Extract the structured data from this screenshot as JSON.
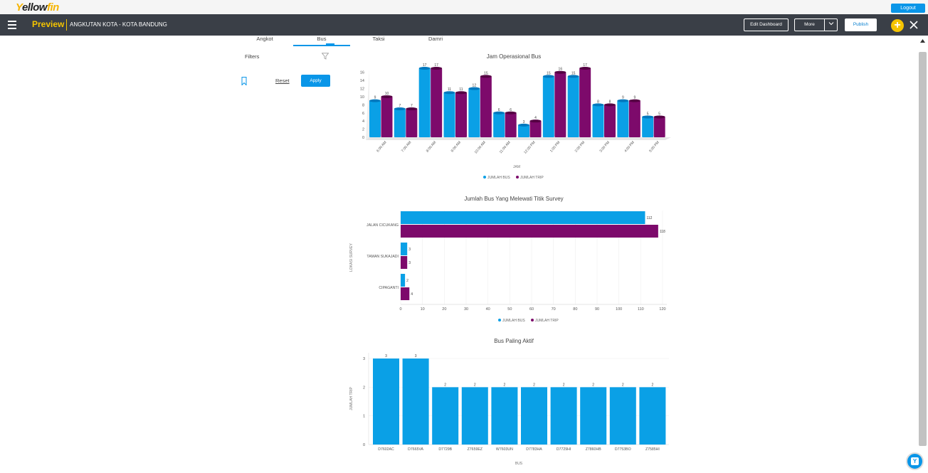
{
  "header": {
    "logo_text": "Yellowfin",
    "logout_label": "Logout",
    "preview_label": "Preview",
    "breadcrumb": "ANGKUTAN KOTA - KOTA BANDUNG",
    "edit_dashboard_label": "Edit Dashboard",
    "more_label": "More",
    "publish_label": "Publish"
  },
  "tabs": [
    "Angkot",
    "Bus",
    "Taksi",
    "Damri"
  ],
  "active_tab": "Bus",
  "filters": {
    "title": "Filters",
    "reset_label": "Reset",
    "apply_label": "Apply"
  },
  "colors": {
    "bus": "#0aa0e6",
    "trip": "#7d0a6b",
    "accent": "#0a96e8",
    "brand_yellow": "#f5c400",
    "toolbar": "#3a3f47"
  },
  "chart_data": [
    {
      "type": "bar",
      "title": "Jam Operasional Bus",
      "xlabel": "JAM",
      "ylabel": "",
      "categories": [
        "6:00 AM",
        "7:00 AM",
        "8:00 AM",
        "9:00 AM",
        "10:00 AM",
        "11:00 AM",
        "12:00 PM",
        "1:00 PM",
        "2:00 PM",
        "3:00 PM",
        "4:00 PM",
        "5:00 PM"
      ],
      "series": [
        {
          "name": "JUMLAH BUS",
          "values": [
            9,
            7,
            17,
            11,
            12,
            6,
            3,
            15,
            15,
            8,
            9,
            5
          ]
        },
        {
          "name": "JUMLAH TRIP",
          "values": [
            10,
            7,
            17,
            11,
            15,
            6,
            4,
            16,
            17,
            8,
            9,
            5
          ]
        }
      ],
      "yticks": [
        0,
        2,
        4,
        6,
        8,
        10,
        12,
        14,
        16
      ],
      "ylim": [
        0,
        17
      ],
      "legend": "bottom"
    },
    {
      "type": "bar",
      "orientation": "horizontal",
      "title": "Jumlah Bus Yang Melewati Titik Survey",
      "xlabel": "",
      "ylabel": "LOKASI SURVEY",
      "categories": [
        "JALAN CICUKANG",
        "TAMAN SUKAJADI",
        "CIPAGANTI"
      ],
      "series": [
        {
          "name": "JUMLAH BUS",
          "values": [
            112,
            3,
            2
          ]
        },
        {
          "name": "JUMLAH TRIP",
          "values": [
            118,
            3,
            4
          ]
        }
      ],
      "xticks": [
        0,
        10,
        20,
        30,
        40,
        50,
        60,
        70,
        80,
        90,
        100,
        110,
        120
      ],
      "xlim": [
        0,
        120
      ],
      "legend": "bottom"
    },
    {
      "type": "bar",
      "title": "Bus Paling Aktif",
      "xlabel": "BUS",
      "ylabel": "JUMLAH TRIP",
      "categories": [
        "D7602AC",
        "D7665VA",
        "D7729B",
        "Z7659EZ",
        "W7603UN",
        "D7783HA",
        "D7729HI",
        "Z7860HB",
        "D7753BO",
        "Z7585HI"
      ],
      "series": [
        {
          "name": "JUMLAH TRIP",
          "values": [
            3,
            3,
            2,
            2,
            2,
            2,
            2,
            2,
            2,
            2
          ]
        }
      ],
      "yticks": [
        0,
        1,
        2,
        3
      ],
      "ylim": [
        0,
        3
      ],
      "legend": "none"
    }
  ]
}
